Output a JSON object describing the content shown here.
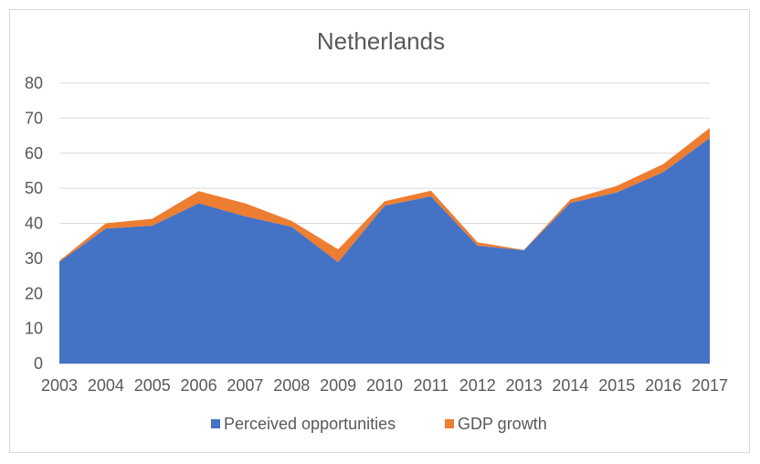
{
  "chart_data": {
    "type": "area",
    "stacked": true,
    "title": "Netherlands",
    "xlabel": "",
    "ylabel": "",
    "categories": [
      "2003",
      "2004",
      "2005",
      "2006",
      "2007",
      "2008",
      "2009",
      "2010",
      "2011",
      "2012",
      "2013",
      "2014",
      "2015",
      "2016",
      "2017"
    ],
    "ylim": [
      0,
      80
    ],
    "yticks": [
      0,
      10,
      20,
      30,
      40,
      50,
      60,
      70,
      80
    ],
    "grid": true,
    "legend": "bottom",
    "series": [
      {
        "name": "Perceived opportunities",
        "color": "#4472c4",
        "values": [
          29,
          38.5,
          39.3,
          45.7,
          42,
          39,
          32.6,
          45,
          47.7,
          33.6,
          32.3,
          45.8,
          48.8,
          54.6,
          64.3
        ]
      },
      {
        "name": "GDP growth",
        "color": "#ed7d31",
        "values": [
          0.3,
          1.5,
          2,
          3.5,
          3.7,
          1.7,
          -3.7,
          1.3,
          1.6,
          1,
          0.1,
          1,
          1.9,
          2.3,
          2.9
        ]
      }
    ]
  }
}
